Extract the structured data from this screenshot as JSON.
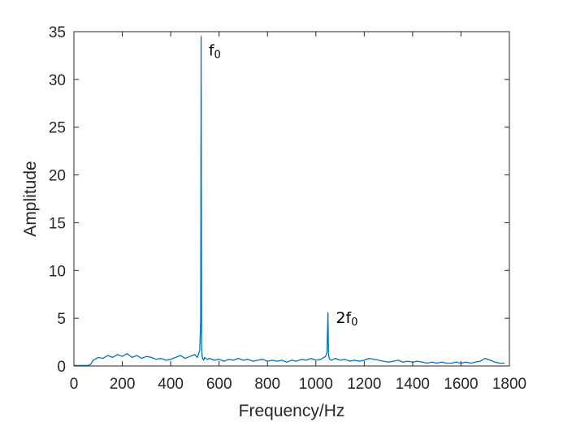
{
  "chart_data": {
    "type": "line",
    "title": "",
    "xlabel": "Frequency/Hz",
    "ylabel": "Amplitude",
    "xlim": [
      0,
      1800
    ],
    "ylim": [
      0,
      35
    ],
    "xticks": [
      0,
      200,
      400,
      600,
      800,
      1000,
      1200,
      1400,
      1600,
      1800
    ],
    "yticks": [
      0,
      5,
      10,
      15,
      20,
      25,
      30,
      35
    ],
    "xtick_labels": [
      "0",
      "200",
      "400",
      "600",
      "800",
      "1000",
      "1200",
      "1400",
      "1600",
      "1800"
    ],
    "ytick_labels": [
      "0",
      "5",
      "10",
      "15",
      "20",
      "25",
      "30",
      "35"
    ],
    "grid": false,
    "box": true,
    "series": [
      {
        "color": "#0072BD",
        "x": [
          0,
          60,
          70,
          80,
          100,
          120,
          140,
          160,
          180,
          200,
          220,
          240,
          260,
          280,
          300,
          320,
          340,
          360,
          380,
          400,
          420,
          440,
          460,
          480,
          500,
          510,
          520,
          524,
          526,
          528,
          530,
          532,
          536,
          540,
          550,
          560,
          580,
          600,
          620,
          640,
          660,
          680,
          700,
          720,
          740,
          760,
          780,
          800,
          820,
          840,
          860,
          880,
          900,
          920,
          940,
          960,
          980,
          1000,
          1020,
          1040,
          1046,
          1050,
          1052,
          1054,
          1058,
          1064,
          1080,
          1100,
          1120,
          1140,
          1160,
          1180,
          1200,
          1220,
          1240,
          1260,
          1280,
          1300,
          1320,
          1340,
          1360,
          1380,
          1400,
          1420,
          1440,
          1460,
          1480,
          1500,
          1520,
          1540,
          1560,
          1580,
          1600,
          1620,
          1640,
          1660,
          1680,
          1700,
          1720,
          1740,
          1760,
          1780
        ],
        "y": [
          0.05,
          0.05,
          0.2,
          0.6,
          0.9,
          0.8,
          1.1,
          0.9,
          1.2,
          1.0,
          1.3,
          0.9,
          1.1,
          0.8,
          1.0,
          0.9,
          0.7,
          0.8,
          0.6,
          0.7,
          0.9,
          1.1,
          0.8,
          1.0,
          1.2,
          0.9,
          1.6,
          4.5,
          34.5,
          2.0,
          1.0,
          0.8,
          0.6,
          0.9,
          0.7,
          0.8,
          0.6,
          0.7,
          0.5,
          0.7,
          0.6,
          0.8,
          0.6,
          0.7,
          0.5,
          0.6,
          0.7,
          0.5,
          0.6,
          0.5,
          0.6,
          0.4,
          0.6,
          0.5,
          0.7,
          0.6,
          0.8,
          0.6,
          0.7,
          1.0,
          1.4,
          5.6,
          1.5,
          0.9,
          0.7,
          0.6,
          0.8,
          0.6,
          0.7,
          0.5,
          0.6,
          0.5,
          0.6,
          0.8,
          0.7,
          0.6,
          0.5,
          0.4,
          0.5,
          0.6,
          0.4,
          0.5,
          0.4,
          0.5,
          0.4,
          0.3,
          0.4,
          0.3,
          0.4,
          0.3,
          0.3,
          0.4,
          0.3,
          0.4,
          0.3,
          0.4,
          0.5,
          0.8,
          0.6,
          0.4,
          0.3,
          0.3
        ]
      }
    ],
    "annotations": [
      {
        "base": "f",
        "sub": "0",
        "x": 530,
        "y": 32.5
      },
      {
        "base": "2f",
        "sub": "0",
        "x": 1056,
        "y": 4.5
      }
    ]
  }
}
